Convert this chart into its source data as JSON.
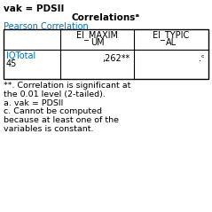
{
  "title_line": "vak = PDSII",
  "table_title": "Correlationsᵃ",
  "subtitle": "Pearson Correlation",
  "col1_header1": "EI_MAXIM",
  "col1_header2": "UM",
  "col2_header1": "EI_TYPIC",
  "col2_header2": "AL",
  "row_label_line1": "IQTotal",
  "row_label_line2": "45",
  "cell_value": ",262**",
  "cell_c": ".ᶜ",
  "footnote1": "**. Correlation is significant at",
  "footnote2": "the 0.01 level (2-tailed).",
  "footnote3": "a. vak = PDSII",
  "footnote4": "c. Cannot be computed",
  "footnote5": "because at least one of the",
  "footnote6": "variables is constant.",
  "bg_color": "#ffffff",
  "text_color": "#000000",
  "blue_color": "#0070c0",
  "font_size": 7.0,
  "bold_font_size": 7.5,
  "footnote_font_size": 6.8
}
